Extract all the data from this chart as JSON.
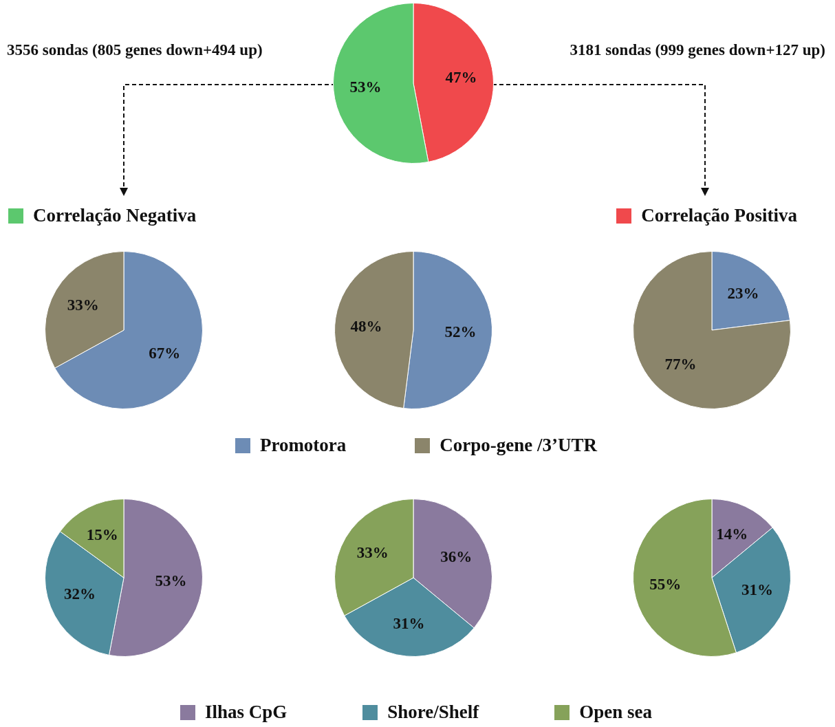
{
  "chart_data": [
    {
      "type": "pie",
      "categories": [
        "Correlação Positiva",
        "Correlação Negativa"
      ],
      "values": [
        47,
        53
      ],
      "colors": [
        "#f0494c",
        "#5cc86e"
      ],
      "value_labels": [
        "47%",
        "53%"
      ],
      "legend": "bottom",
      "annotations": [
        "3556 sondas (805 genes down+494 up)",
        "3181 sondas (999 genes down+127 up)"
      ]
    },
    {
      "type": "pie",
      "categories": [
        null,
        null
      ],
      "values": [
        67,
        33
      ],
      "colors": [
        "#6d8cb5",
        "#8b856b"
      ],
      "value_labels": [
        "67%",
        "33%"
      ]
    },
    {
      "type": "pie",
      "categories": [
        "Promotora",
        "Corpo-gene /3’UTR"
      ],
      "values": [
        52,
        48
      ],
      "colors": [
        "#6d8cb5",
        "#8b856b"
      ],
      "value_labels": [
        "52%",
        "48%"
      ],
      "legend": "bottom"
    },
    {
      "type": "pie",
      "categories": [
        null,
        null
      ],
      "values": [
        23,
        77
      ],
      "colors": [
        "#6d8cb5",
        "#8b856b"
      ],
      "value_labels": [
        "23%",
        "77%"
      ]
    },
    {
      "type": "pie",
      "categories": [
        null,
        null,
        null
      ],
      "values": [
        53,
        32,
        15
      ],
      "colors": [
        "#8a7a9e",
        "#4f8d9e",
        "#86a25a"
      ],
      "value_labels": [
        "53%",
        "32%",
        "15%"
      ]
    },
    {
      "type": "pie",
      "categories": [
        "Ilhas CpG",
        "Shore/Shelf",
        "Open sea"
      ],
      "values": [
        36,
        31,
        33
      ],
      "colors": [
        "#8a7a9e",
        "#4f8d9e",
        "#86a25a"
      ],
      "value_labels": [
        "36%",
        "31%",
        "33%"
      ],
      "legend": "bottom"
    },
    {
      "type": "pie",
      "categories": [
        null,
        null,
        null
      ],
      "values": [
        14,
        31,
        55
      ],
      "colors": [
        "#8a7a9e",
        "#4f8d9e",
        "#86a25a"
      ],
      "value_labels": [
        "14%",
        "31%",
        "55%"
      ]
    }
  ]
}
